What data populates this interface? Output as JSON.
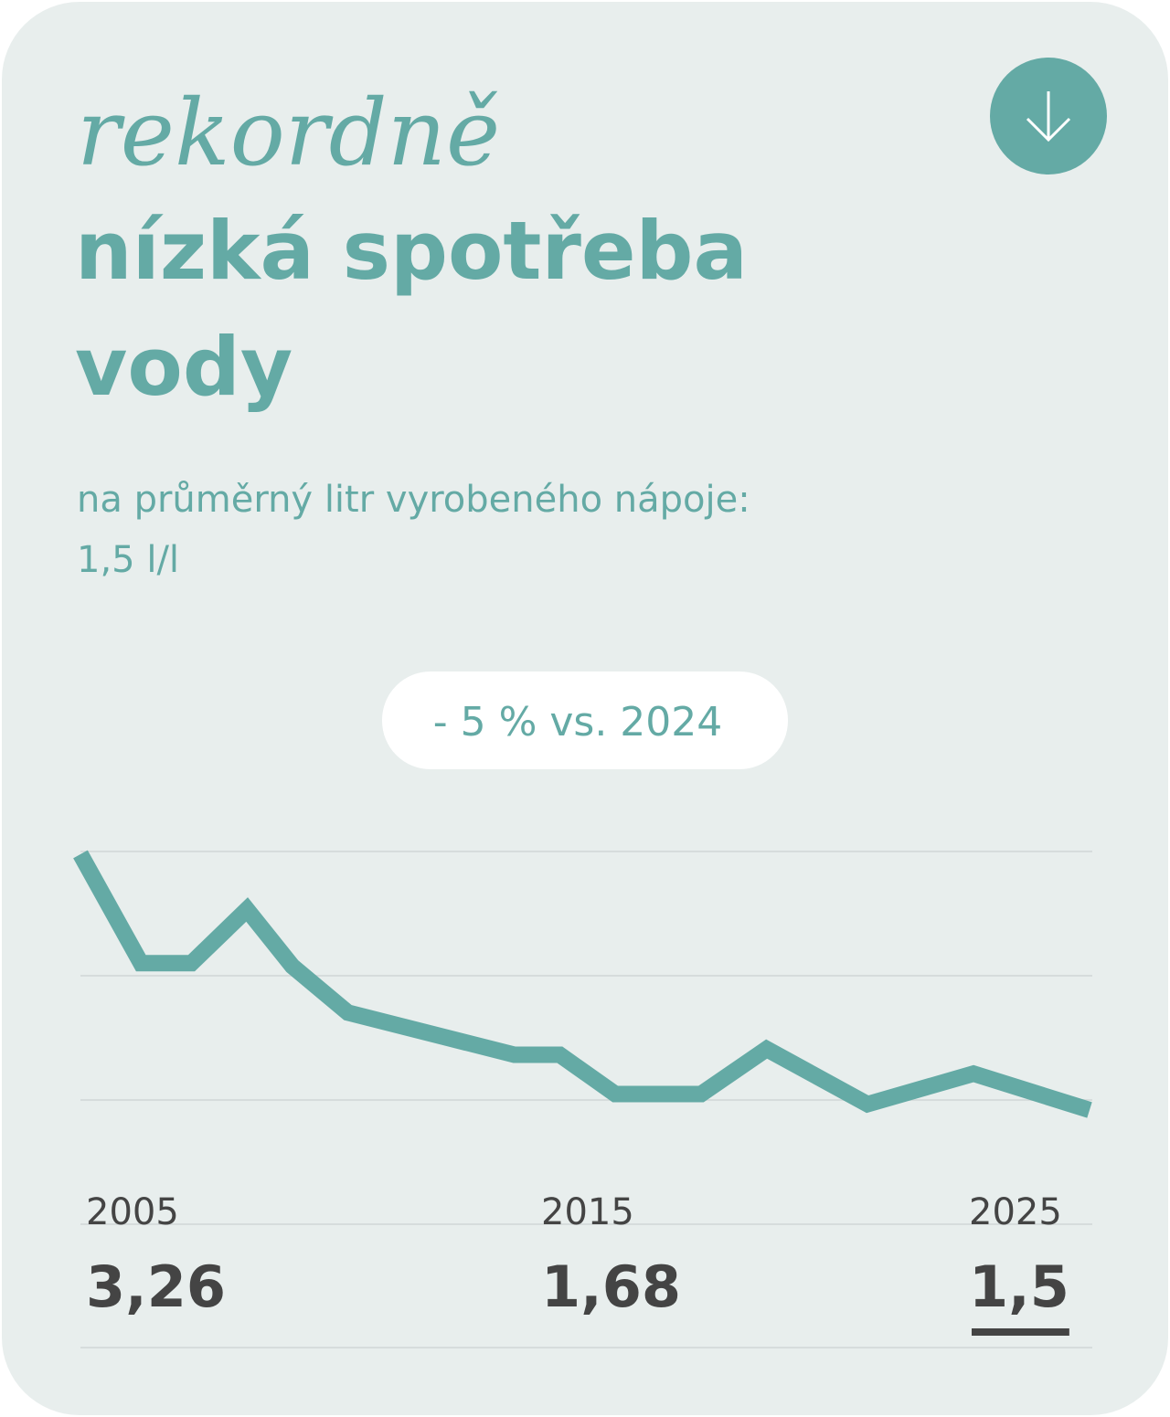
{
  "header": {
    "kicker": "rekordně",
    "title_line1": "nízká spotřeba",
    "title_line2": "vody",
    "subtitle": "na průměrný litr vyrobeného nápoje:",
    "subtitle_value": "1,5 l/l"
  },
  "badge": "- 5 % vs. 2024",
  "chart_data": {
    "type": "line",
    "x": [
      2005,
      2006.2,
      2007.2,
      2008.3,
      2009.2,
      2010.3,
      2013.6,
      2014.5,
      2015.6,
      2017.3,
      2018.6,
      2020.6,
      2022.7,
      2025
    ],
    "values": [
      3.26,
      2.51,
      2.51,
      2.88,
      2.49,
      2.17,
      1.88,
      1.88,
      1.61,
      1.61,
      1.92,
      1.54,
      1.75,
      1.5
    ],
    "xlim": [
      2005,
      2025
    ],
    "ylim": [
      1.5,
      3.26
    ],
    "color": "#64aaa5"
  },
  "summary": [
    {
      "year": "2005",
      "value": "3,26"
    },
    {
      "year": "2015",
      "value": "1,68"
    },
    {
      "year": "2025",
      "value": "1,5"
    }
  ]
}
